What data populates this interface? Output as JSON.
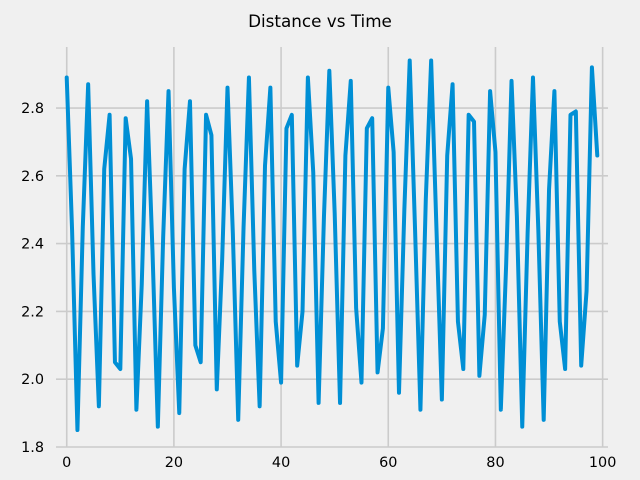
{
  "chart_data": {
    "type": "line",
    "title": "Distance vs Time",
    "xlabel": "",
    "ylabel": "",
    "xlim": [
      -2,
      101
    ],
    "ylim": [
      1.8,
      2.98
    ],
    "xticks": [
      0,
      20,
      40,
      60,
      80,
      100
    ],
    "yticks": [
      1.8,
      2.0,
      2.2,
      2.4,
      2.6,
      2.8
    ],
    "xtick_labels": [
      "0",
      "20",
      "40",
      "60",
      "80",
      "100"
    ],
    "ytick_labels": [
      "1.8",
      "2.0",
      "2.2",
      "2.4",
      "2.6",
      "2.8"
    ],
    "grid": true,
    "legend": "none",
    "series": [
      {
        "color": "#008fd5",
        "x": [
          0,
          1,
          2,
          3,
          4,
          5,
          6,
          7,
          8,
          9,
          10,
          11,
          12,
          13,
          14,
          15,
          16,
          17,
          18,
          19,
          20,
          21,
          22,
          23,
          24,
          25,
          26,
          27,
          28,
          29,
          30,
          31,
          32,
          33,
          34,
          35,
          36,
          37,
          38,
          39,
          40,
          41,
          42,
          43,
          44,
          45,
          46,
          47,
          48,
          49,
          50,
          51,
          52,
          53,
          54,
          55,
          56,
          57,
          58,
          59,
          60,
          61,
          62,
          63,
          64,
          65,
          66,
          67,
          68,
          69,
          70,
          71,
          72,
          73,
          74,
          75,
          76,
          77,
          78,
          79,
          80,
          81,
          82,
          83,
          84,
          85,
          86,
          87,
          88,
          89,
          90,
          91,
          92,
          93,
          94,
          95,
          96,
          97,
          98,
          99
        ],
        "values": [
          2.89,
          2.44,
          1.85,
          2.45,
          2.87,
          2.31,
          1.92,
          2.62,
          2.78,
          2.05,
          2.03,
          2.77,
          2.65,
          1.91,
          2.28,
          2.82,
          2.38,
          1.86,
          2.42,
          2.85,
          2.27,
          1.9,
          2.62,
          2.82,
          2.1,
          2.05,
          2.78,
          2.72,
          1.97,
          2.35,
          2.86,
          2.43,
          1.88,
          2.45,
          2.89,
          2.32,
          1.92,
          2.63,
          2.86,
          2.17,
          1.99,
          2.74,
          2.78,
          2.04,
          2.2,
          2.89,
          2.61,
          1.93,
          2.48,
          2.91,
          2.49,
          1.93,
          2.66,
          2.88,
          2.21,
          1.99,
          2.74,
          2.77,
          2.02,
          2.15,
          2.86,
          2.67,
          1.96,
          2.5,
          2.94,
          2.44,
          1.91,
          2.53,
          2.94,
          2.44,
          1.94,
          2.66,
          2.87,
          2.17,
          2.03,
          2.78,
          2.76,
          2.01,
          2.19,
          2.85,
          2.67,
          1.91,
          2.34,
          2.88,
          2.48,
          1.86,
          2.43,
          2.89,
          2.44,
          1.88,
          2.56,
          2.85,
          2.17,
          2.03,
          2.78,
          2.79,
          2.04,
          2.26,
          2.92,
          2.66
        ]
      }
    ]
  }
}
